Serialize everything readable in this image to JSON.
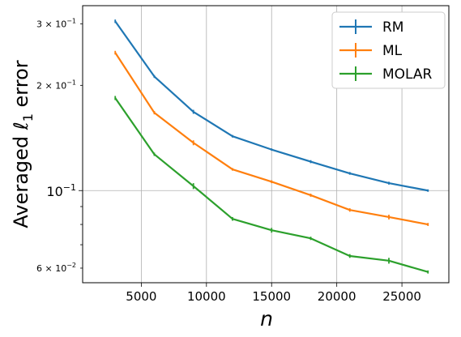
{
  "chart_data": {
    "type": "line",
    "title": "",
    "xlabel": "n",
    "ylabel": "Averaged ℓ₁ error",
    "ylabel_parts": {
      "main": "Averaged ",
      "ell": "ℓ",
      "sub": "1",
      "tail": " error"
    },
    "yscale": "log",
    "xlim": [
      500,
      28600
    ],
    "ylim": [
      0.0545,
      0.338
    ],
    "grid": true,
    "legend_position": "top-right",
    "x_ticks": [
      {
        "value": 5000,
        "label": "5000"
      },
      {
        "value": 10000,
        "label": "10000"
      },
      {
        "value": 15000,
        "label": "15000"
      },
      {
        "value": 20000,
        "label": "20000"
      },
      {
        "value": 25000,
        "label": "25000"
      }
    ],
    "y_major_ticks": [
      {
        "value": 0.1,
        "label_base": "10",
        "label_exp": "−1"
      }
    ],
    "y_minor_ticks": [
      {
        "value": 0.06,
        "label_coef": "6",
        "label_exp": "−2"
      },
      {
        "value": 0.07,
        "label_coef": "",
        "label_exp": ""
      },
      {
        "value": 0.08,
        "label_coef": "",
        "label_exp": ""
      },
      {
        "value": 0.09,
        "label_coef": "",
        "label_exp": ""
      },
      {
        "value": 0.2,
        "label_coef": "2",
        "label_exp": "−1"
      },
      {
        "value": 0.3,
        "label_coef": "3",
        "label_exp": "−1"
      }
    ],
    "x": [
      3000,
      6000,
      9000,
      12000,
      15000,
      18000,
      21000,
      24000,
      27000
    ],
    "series": [
      {
        "name": "RM",
        "color": "#1f77b4",
        "values": [
          0.305,
          0.212,
          0.168,
          0.143,
          0.131,
          0.121,
          0.112,
          0.105,
          0.1
        ],
        "error": [
          0.0035,
          0.002,
          0.0022,
          0.0012,
          0.001,
          0.0012,
          0.001,
          0.001,
          0.0008
        ]
      },
      {
        "name": "ML",
        "color": "#ff7f0e",
        "values": [
          0.248,
          0.167,
          0.137,
          0.115,
          0.106,
          0.097,
          0.088,
          0.084,
          0.08
        ],
        "error": [
          0.003,
          0.0018,
          0.0022,
          0.001,
          0.001,
          0.001,
          0.001,
          0.0013,
          0.0008
        ]
      },
      {
        "name": "MOLAR",
        "color": "#2ca02c",
        "values": [
          0.184,
          0.127,
          0.103,
          0.083,
          0.077,
          0.073,
          0.065,
          0.063,
          0.0585
        ],
        "error": [
          0.0025,
          0.0014,
          0.002,
          0.001,
          0.0012,
          0.0008,
          0.0008,
          0.0012,
          0.0006
        ]
      }
    ]
  }
}
